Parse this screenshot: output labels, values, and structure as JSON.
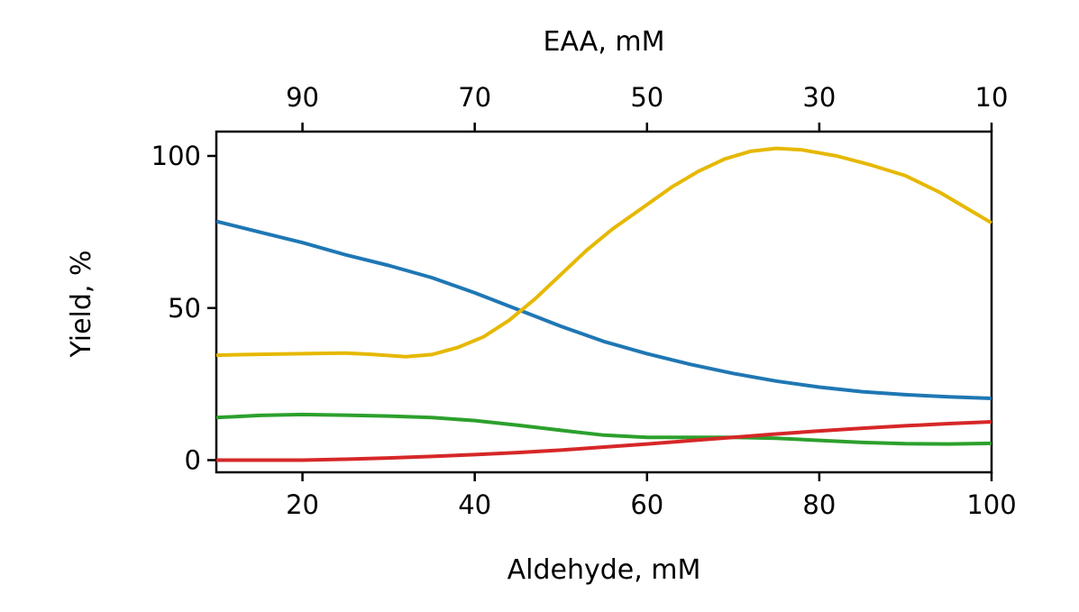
{
  "chart_data": {
    "type": "line",
    "title": "",
    "xlabel": "Aldehyde, mM",
    "ylabel": "Yield, %",
    "x2label": "EAA, mM",
    "xlim": [
      10,
      100
    ],
    "ylim": [
      -4,
      108
    ],
    "x2lim": [
      100,
      10
    ],
    "xticks": [
      20,
      40,
      60,
      80,
      100
    ],
    "yticks": [
      0,
      50,
      100
    ],
    "x2ticks": [
      90,
      70,
      50,
      30,
      10
    ],
    "grid": false,
    "legend": "none",
    "series": [
      {
        "color": "#1f77b4",
        "x": [
          10,
          15,
          20,
          25,
          30,
          35,
          40,
          45,
          50,
          55,
          60,
          65,
          70,
          75,
          80,
          85,
          90,
          95,
          100
        ],
        "y": [
          78.5,
          75,
          71.5,
          67.5,
          64,
          60,
          55,
          49.5,
          44,
          39,
          35,
          31.5,
          28.5,
          26,
          24,
          22.5,
          21.5,
          20.8,
          20.3
        ]
      },
      {
        "color": "#e6b800",
        "x": [
          10,
          15,
          20,
          25,
          28,
          32,
          35,
          38,
          41,
          44,
          47,
          50,
          53,
          56,
          60,
          63,
          66,
          69,
          72,
          75,
          78,
          82,
          86,
          90,
          94,
          97,
          100
        ],
        "y": [
          34.5,
          34.8,
          35,
          35.2,
          34.8,
          34,
          34.7,
          37,
          40.5,
          46,
          53,
          61,
          69,
          76,
          84,
          90,
          95,
          99,
          101.5,
          102.5,
          102,
          100,
          97,
          93.5,
          88,
          83,
          78
        ]
      },
      {
        "color": "#2ca02c",
        "x": [
          10,
          15,
          20,
          25,
          30,
          35,
          40,
          45,
          50,
          55,
          60,
          65,
          70,
          75,
          80,
          85,
          90,
          95,
          100
        ],
        "y": [
          14,
          14.7,
          15,
          14.8,
          14.5,
          14,
          13,
          11.5,
          9.8,
          8.2,
          7.5,
          7.5,
          7.5,
          7.2,
          6.5,
          5.8,
          5.4,
          5.3,
          5.5
        ]
      },
      {
        "color": "#d62728",
        "x": [
          10,
          20,
          25,
          30,
          35,
          40,
          45,
          50,
          55,
          60,
          65,
          70,
          75,
          80,
          85,
          90,
          95,
          100
        ],
        "y": [
          0,
          0,
          0.3,
          0.7,
          1.2,
          1.8,
          2.5,
          3.3,
          4.3,
          5.3,
          6.4,
          7.5,
          8.6,
          9.6,
          10.5,
          11.3,
          12,
          12.6
        ]
      }
    ]
  }
}
